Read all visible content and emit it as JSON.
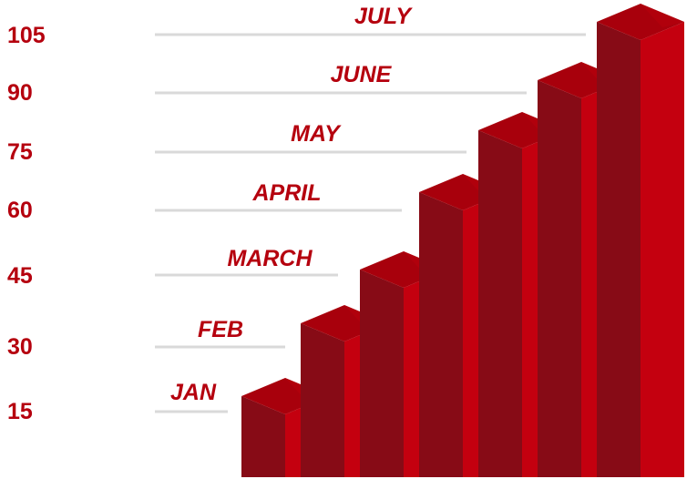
{
  "chart_data": {
    "type": "bar",
    "style": "3d-staircase",
    "categories": [
      "JAN",
      "FEB",
      "MARCH",
      "APRIL",
      "MAY",
      "JUNE",
      "JULY"
    ],
    "values": [
      15,
      30,
      45,
      60,
      75,
      90,
      105
    ],
    "y_ticks": [
      "15",
      "30",
      "45",
      "60",
      "75",
      "90",
      "105"
    ],
    "ylim": [
      0,
      105
    ],
    "grid": false,
    "colors": {
      "bar_front": "#c4000f",
      "bar_side": "#870b16",
      "bar_top": "#a8000c",
      "bar_top_right": "#b8000e",
      "label": "#b5000e",
      "guide": "#d9d9d9"
    }
  }
}
